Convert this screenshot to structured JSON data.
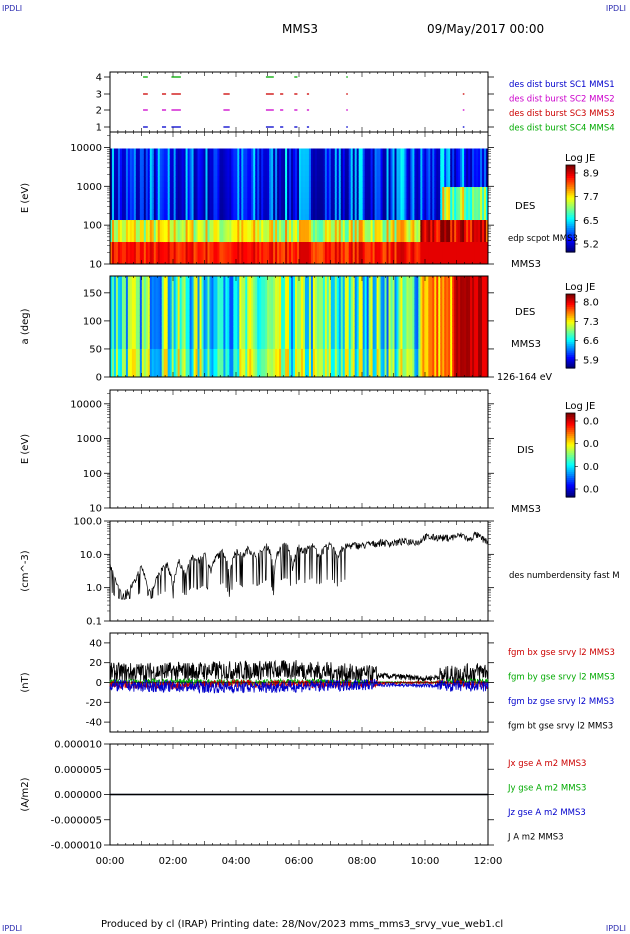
{
  "corner_labels": {
    "top_left": "IPDLI",
    "top_right": "IPDLI",
    "bottom_left": "IPDLI",
    "bottom_right": "IPDLI"
  },
  "header": {
    "spacecraft": "MMS3",
    "datetime": "09/May/2017 00:00"
  },
  "footer": {
    "text": "Produced by cl (IRAP)   Printing date: 28/Nov/2023   mms_mms3_srvy_vue_web1.cl"
  },
  "time_axis": {
    "labels": [
      "00:00",
      "02:00",
      "04:00",
      "06:00",
      "08:00",
      "10:00",
      "12:00"
    ],
    "range_hours": [
      0,
      12
    ]
  },
  "colors": {
    "blue": "#0000cc",
    "magenta": "#cc00cc",
    "red": "#cc0000",
    "green": "#00aa00",
    "black": "#000000"
  },
  "chart_data": [
    {
      "type": "scatter",
      "id": "burst",
      "y_ticks": [
        "4",
        "3",
        "2",
        "1"
      ],
      "legend": [
        {
          "label": "des dist burst SC1 MMS1",
          "color": "#0000cc"
        },
        {
          "label": "des dist burst SC2 MMS2",
          "color": "#cc00cc"
        },
        {
          "label": "des dist burst SC3 MMS3",
          "color": "#cc0000"
        },
        {
          "label": "des dist burst SC4 MMS4",
          "color": "#00aa00"
        }
      ],
      "burst_intervals_hours": [
        [
          1.05,
          1.2
        ],
        [
          1.65,
          1.78
        ],
        [
          1.95,
          2.25
        ],
        [
          3.6,
          3.8
        ],
        [
          4.95,
          5.2
        ],
        [
          5.4,
          5.5
        ],
        [
          5.85,
          5.95
        ],
        [
          6.25,
          6.32
        ],
        [
          7.5,
          7.55
        ],
        [
          11.2,
          11.25
        ]
      ]
    },
    {
      "type": "heatmap",
      "id": "des_energy",
      "ylabel": "E (eV)",
      "y_ticks": [
        "10000",
        "1000",
        "100",
        "10"
      ],
      "yscale": "log",
      "ylim": [
        10,
        25000
      ],
      "colorbar": {
        "title": "Log JE",
        "ticks": [
          "8.9",
          "7.7",
          "6.5",
          "5.2"
        ]
      },
      "side_labels": [
        "DES",
        "MMS3"
      ],
      "annotation": "edp scpot MMS3"
    },
    {
      "type": "heatmap",
      "id": "des_pitch",
      "ylabel": "a (deg)",
      "y_ticks": [
        "150",
        "100",
        "50",
        "0"
      ],
      "ylim": [
        0,
        180
      ],
      "colorbar": {
        "title": "Log JE",
        "ticks": [
          "8.0",
          "7.3",
          "6.6",
          "5.9"
        ]
      },
      "side_labels": [
        "DES",
        "MMS3"
      ],
      "energy_label": "126-164 eV"
    },
    {
      "type": "heatmap",
      "id": "dis_energy",
      "ylabel": "E (eV)",
      "y_ticks": [
        "10000",
        "1000",
        "100",
        "10"
      ],
      "yscale": "log",
      "ylim": [
        10,
        25000
      ],
      "colorbar": {
        "title": "Log JE",
        "ticks": [
          "0.0",
          "0.0",
          "0.0",
          "0.0"
        ]
      },
      "side_labels": [
        "DIS",
        "MMS3"
      ]
    },
    {
      "type": "line",
      "id": "density",
      "ylabel": "(cm^-3)",
      "y_ticks": [
        "100.0",
        "10.0",
        "1.0",
        "0.1"
      ],
      "yscale": "log",
      "ylim": [
        0.1,
        100
      ],
      "series": [
        {
          "name": "des numberdensity fast M",
          "color": "#000000",
          "x": [
            0,
            0.2,
            0.4,
            0.6,
            0.8,
            1,
            1.2,
            1.4,
            1.6,
            1.8,
            2,
            2.2,
            2.4,
            2.6,
            2.8,
            3,
            3.2,
            3.4,
            3.6,
            3.8,
            4,
            4.2,
            4.4,
            4.6,
            4.8,
            5,
            5.2,
            5.4,
            5.6,
            5.8,
            6,
            6.2,
            6.4,
            6.6,
            6.8,
            7,
            7.2,
            7.4,
            7.6,
            7.8,
            8,
            8.2,
            8.4,
            8.6,
            8.8,
            9,
            9.2,
            9.4,
            9.6,
            9.8,
            10,
            10.2,
            10.4,
            10.6,
            10.8,
            11,
            11.2,
            11.4,
            11.6,
            11.8,
            12
          ],
          "values": [
            5,
            1.2,
            0.6,
            0.8,
            1.5,
            4,
            0.7,
            1.2,
            3,
            5,
            0.8,
            6,
            2,
            8,
            6,
            10,
            3,
            9,
            12,
            1,
            14,
            8,
            15,
            9,
            11,
            18,
            2,
            16,
            20,
            3,
            17,
            12,
            19,
            10,
            14,
            20,
            8,
            16,
            18,
            19,
            18,
            20,
            21,
            23,
            22,
            22,
            24,
            24,
            25,
            23,
            34,
            32,
            33,
            31,
            32,
            35,
            38,
            26,
            40,
            30,
            24
          ]
        }
      ]
    },
    {
      "type": "line",
      "id": "magnetic",
      "ylabel": "(nT)",
      "y_ticks": [
        "40",
        "20",
        "0",
        "-20",
        "-40"
      ],
      "ylim": [
        -50,
        50
      ],
      "series": [
        {
          "name": "fgm bx gse srvy l2 MMS3",
          "color": "#cc0000",
          "x": [
            0,
            2,
            4,
            6,
            8,
            10,
            12
          ],
          "values": [
            -2,
            -3,
            -1,
            -2,
            -1,
            0,
            -2
          ]
        },
        {
          "name": "fgm by gse srvy l2 MMS3",
          "color": "#00aa00",
          "x": [
            0,
            2,
            4,
            6,
            8,
            10,
            12
          ],
          "values": [
            0,
            1,
            0,
            1,
            0,
            0,
            1
          ]
        },
        {
          "name": "fgm bz gse srvy l2 MMS3",
          "color": "#0000cc",
          "x": [
            0,
            2,
            4,
            6,
            8,
            10,
            12
          ],
          "values": [
            -3,
            -4,
            -5,
            -4,
            -2,
            -3,
            -4
          ]
        },
        {
          "name": "fgm bt gse srvy l2 MMS3",
          "color": "#000000",
          "x": [
            0,
            2,
            4,
            6,
            8,
            10,
            12
          ],
          "values": [
            10,
            11,
            12,
            13,
            8,
            4,
            12
          ]
        }
      ]
    },
    {
      "type": "line",
      "id": "current",
      "ylabel": "(A/m2)",
      "y_ticks": [
        "0.000010",
        "0.000005",
        "0.000000",
        "-0.000005",
        "-0.000010"
      ],
      "ylim": [
        -1e-05,
        1e-05
      ],
      "series": [
        {
          "name": "Jx gse A m2 MMS3",
          "color": "#cc0000",
          "x": [
            0,
            12
          ],
          "values": [
            0,
            0
          ]
        },
        {
          "name": "Jy gse A m2 MMS3",
          "color": "#00aa00",
          "x": [
            0,
            12
          ],
          "values": [
            0,
            0
          ]
        },
        {
          "name": "Jz gse A m2 MMS3",
          "color": "#0000cc",
          "x": [
            0,
            12
          ],
          "values": [
            0,
            0
          ]
        },
        {
          "name": "J A m2 MMS3",
          "color": "#000000",
          "x": [
            0,
            12
          ],
          "values": [
            0,
            0
          ]
        }
      ]
    }
  ]
}
